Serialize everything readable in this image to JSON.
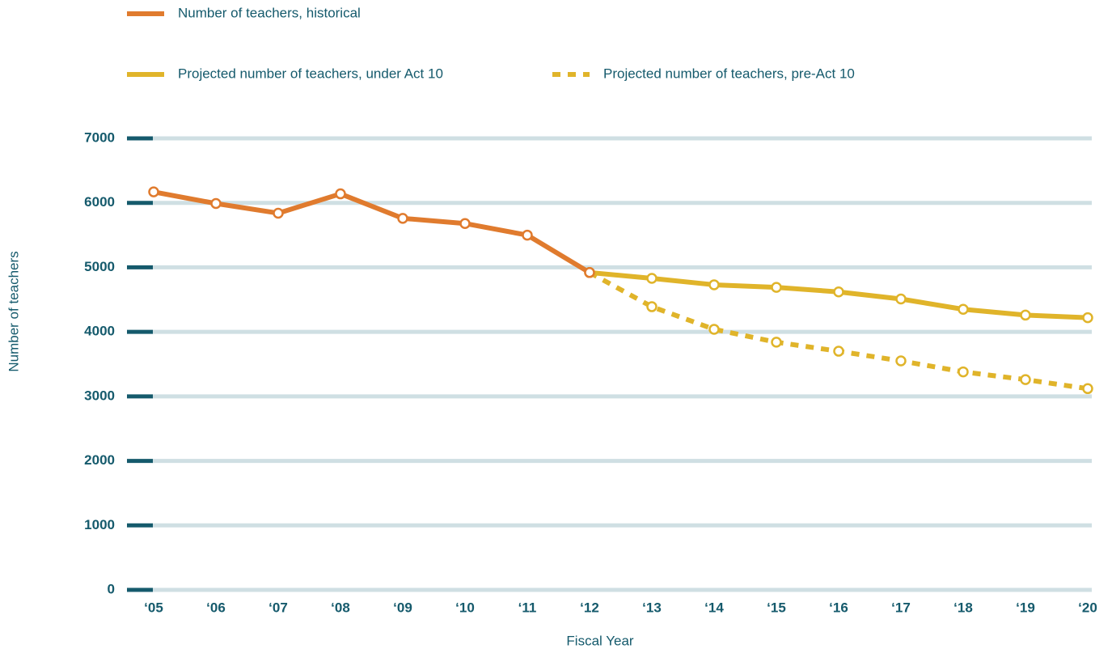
{
  "chart_data": {
    "type": "line",
    "categories": [
      "‘05",
      "‘06",
      "‘07",
      "‘08",
      "‘09",
      "‘10",
      "‘11",
      "‘12",
      "‘13",
      "‘14",
      "‘15",
      "‘16",
      "‘17",
      "‘18",
      "‘19",
      "‘20"
    ],
    "series": [
      {
        "name": "Number of teachers, historical",
        "color": "#e07b2e",
        "style": "solid",
        "values": [
          6170,
          5990,
          5840,
          6140,
          5760,
          5680,
          5500,
          4920,
          null,
          null,
          null,
          null,
          null,
          null,
          null,
          null
        ]
      },
      {
        "name": "Projected number of teachers, under Act 10",
        "color": "#e0b42a",
        "style": "solid",
        "values": [
          null,
          null,
          null,
          null,
          null,
          null,
          null,
          4920,
          4830,
          4730,
          4690,
          4620,
          4510,
          4350,
          4260,
          4220
        ]
      },
      {
        "name": "Projected number of teachers, pre-Act 10",
        "color": "#e0b42a",
        "style": "dashed",
        "values": [
          null,
          null,
          null,
          null,
          null,
          null,
          null,
          4920,
          4390,
          4040,
          3840,
          3700,
          3550,
          3380,
          3260,
          3120
        ]
      }
    ],
    "x_label": "Fiscal Year",
    "y_label": "Number of teachers",
    "ylim": [
      0,
      7000
    ],
    "yticks": [
      0,
      1000,
      2000,
      3000,
      4000,
      5000,
      6000,
      7000
    ],
    "grid": true
  }
}
